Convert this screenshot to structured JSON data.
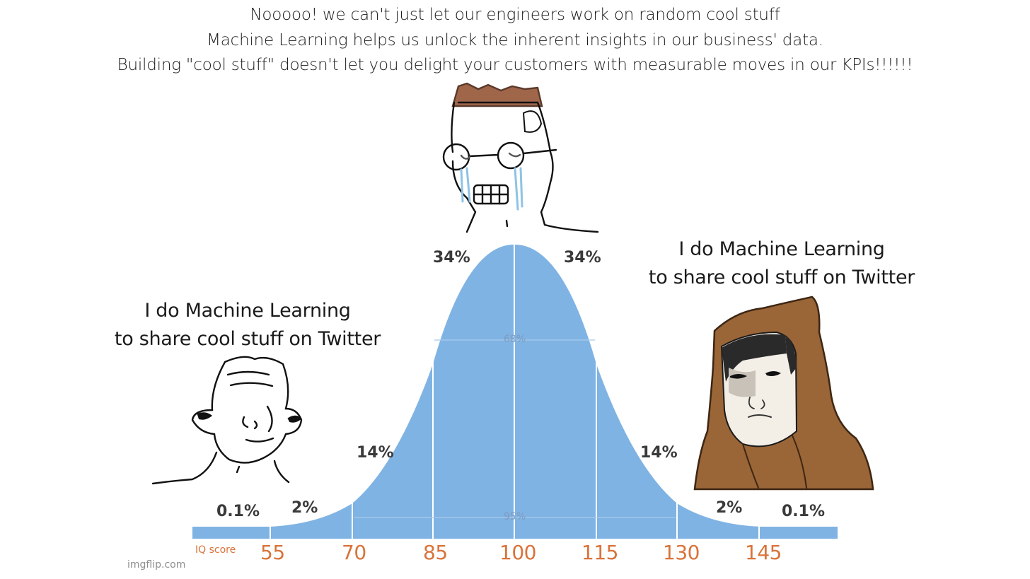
{
  "meme": {
    "top_text": [
      "Nooooo! we can't just let our engineers work on random cool stuff",
      "Machine Learning helps us unlock the inherent insights in our business' data.",
      "Building \"cool stuff\" doesn't let you delight your customers with measurable moves in our KPIs!!!!!!"
    ],
    "left_text": [
      "I do Machine Learning",
      "to share cool stuff on Twitter"
    ],
    "right_text": [
      "I do Machine Learning",
      "to share cool stuff on Twitter"
    ],
    "watermark": "imgflip.com"
  },
  "bell_curve": {
    "percent_labels": {
      "far_left": "0.1%",
      "left_2": "2%",
      "left_14": "14%",
      "left_34": "34%",
      "right_34": "34%",
      "right_14": "14%",
      "right_2": "2%",
      "far_right": "0.1%"
    },
    "inner_labels": {
      "band_68": "68%",
      "band_95": "95%"
    },
    "axis_label": "IQ score",
    "iq_ticks": [
      "55",
      "70",
      "85",
      "100",
      "115",
      "130",
      "145"
    ],
    "fill_color": "#7fb3e3",
    "tick_color": "#d9733a"
  }
}
